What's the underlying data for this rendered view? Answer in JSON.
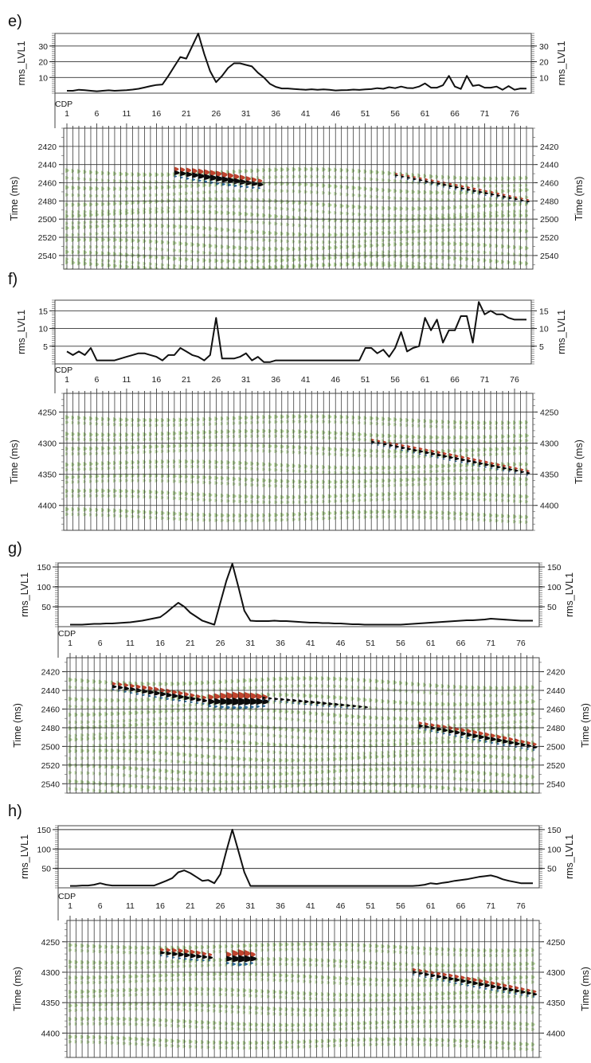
{
  "figure": {
    "x_axis_label": "CDP",
    "cdp_ticks": [
      1,
      6,
      11,
      16,
      21,
      26,
      31,
      36,
      41,
      46,
      51,
      56,
      61,
      66,
      71,
      76
    ],
    "colors": {
      "line": "#111111",
      "trace": "#222222",
      "green": "#a9cf8c",
      "red": "#c0442e",
      "black": "#0b0b0b",
      "blue": "#2f6e9a"
    }
  },
  "chart_data": [
    {
      "type": "line",
      "panel_label": "e)",
      "ylabel": "rms_LVL1",
      "ylim": [
        0,
        38
      ],
      "yticks": [
        10,
        20,
        30
      ],
      "x": [
        1,
        2,
        3,
        4,
        5,
        6,
        7,
        8,
        9,
        10,
        11,
        12,
        13,
        14,
        15,
        16,
        17,
        18,
        19,
        20,
        21,
        22,
        23,
        24,
        25,
        26,
        27,
        28,
        29,
        30,
        31,
        32,
        33,
        34,
        35,
        36,
        37,
        38,
        39,
        40,
        41,
        42,
        43,
        44,
        45,
        46,
        47,
        48,
        49,
        50,
        51,
        52,
        53,
        54,
        55,
        56,
        57,
        58,
        59,
        60,
        61,
        62,
        63,
        64,
        65,
        66,
        67,
        68,
        69,
        70,
        71,
        72,
        73,
        74,
        75,
        76,
        77,
        78
      ],
      "y": [
        1.5,
        1.5,
        2.2,
        1.9,
        1.5,
        1.2,
        1.5,
        1.8,
        1.5,
        1.7,
        1.9,
        2.3,
        2.8,
        3.6,
        4.5,
        5.2,
        5.5,
        11,
        17,
        23,
        22,
        30,
        38,
        25,
        14,
        7,
        11,
        16,
        19,
        19,
        18,
        17,
        13,
        10,
        6,
        4,
        3,
        3,
        2.7,
        2.4,
        2.2,
        2.5,
        2.2,
        2.4,
        2.2,
        1.7,
        1.9,
        2,
        2.3,
        2.1,
        2.4,
        2.6,
        3.2,
        2.8,
        3.8,
        3.2,
        4.2,
        3.3,
        3.2,
        4.2,
        6.2,
        3.5,
        3.5,
        5,
        11,
        4.2,
        2.7,
        11,
        4.6,
        5.2,
        3.5,
        3.5,
        4.2,
        2.2,
        4.5,
        2.2,
        3,
        2.9
      ],
      "seismic": {
        "ylabel": "Time (ms)",
        "yrange": [
          2400,
          2555
        ],
        "yticks": [
          2420,
          2440,
          2460,
          2480,
          2500,
          2520,
          2540
        ],
        "horizons": [
          2446,
          2462,
          2480,
          2494,
          2510,
          2526,
          2540,
          2550
        ],
        "bright": [
          {
            "from": 19,
            "to": 33,
            "t0": 2449,
            "t1": 2462,
            "strength": 1.0,
            "red": true
          },
          {
            "from": 56,
            "to": 79,
            "t0": 2452,
            "t1": 2482,
            "strength": 0.45,
            "red": true
          }
        ]
      }
    },
    {
      "type": "line",
      "panel_label": "f)",
      "ylabel": "rms_LVL1",
      "ylim": [
        0,
        18
      ],
      "yticks": [
        5,
        10,
        15
      ],
      "x": [
        1,
        2,
        3,
        4,
        5,
        6,
        7,
        8,
        9,
        10,
        11,
        12,
        13,
        14,
        15,
        16,
        17,
        18,
        19,
        20,
        21,
        22,
        23,
        24,
        25,
        26,
        27,
        28,
        29,
        30,
        31,
        32,
        33,
        34,
        35,
        36,
        37,
        38,
        39,
        40,
        41,
        42,
        43,
        44,
        45,
        46,
        47,
        48,
        49,
        50,
        51,
        52,
        53,
        54,
        55,
        56,
        57,
        58,
        59,
        60,
        61,
        62,
        63,
        64,
        65,
        66,
        67,
        68,
        69,
        70,
        71,
        72,
        73,
        74,
        75,
        76,
        77,
        78
      ],
      "y": [
        3.5,
        2.5,
        3.5,
        2.5,
        4.5,
        1,
        1,
        1,
        1,
        1.5,
        2,
        2.5,
        3,
        3,
        2.5,
        2,
        1,
        2.5,
        2.5,
        4.5,
        3.5,
        2.5,
        2,
        1,
        2.5,
        13,
        1.5,
        1.5,
        1.5,
        2,
        3,
        1,
        2,
        0.5,
        0.5,
        1,
        1,
        1,
        1,
        1,
        1,
        1,
        1,
        1,
        1,
        1,
        1,
        1,
        1,
        1,
        4.5,
        4.5,
        3,
        4,
        2,
        4.5,
        9,
        3.5,
        4.5,
        5,
        13,
        9.5,
        12.5,
        6,
        9.5,
        9.5,
        13.5,
        13.5,
        6,
        17.5,
        14,
        15,
        14,
        14,
        13,
        12.5,
        12.5,
        12.5
      ],
      "seismic": {
        "ylabel": "Time (ms)",
        "yrange": [
          4220,
          4440
        ],
        "yticks": [
          4250,
          4300,
          4350,
          4400
        ],
        "horizons": [
          4258,
          4282,
          4305,
          4332,
          4355,
          4380,
          4410
        ],
        "bright": [
          {
            "from": 52,
            "to": 79,
            "t0": 4298,
            "t1": 4350,
            "strength": 0.55,
            "red": true
          }
        ]
      }
    },
    {
      "type": "line",
      "panel_label": "g)",
      "ylabel": "rms_LVL1",
      "ylim": [
        0,
        160
      ],
      "yticks": [
        50,
        100,
        150
      ],
      "x": [
        1,
        2,
        3,
        4,
        5,
        6,
        7,
        8,
        9,
        10,
        11,
        12,
        13,
        14,
        15,
        16,
        17,
        18,
        19,
        20,
        21,
        22,
        23,
        24,
        25,
        26,
        27,
        28,
        29,
        30,
        31,
        32,
        33,
        34,
        35,
        36,
        37,
        38,
        39,
        40,
        41,
        42,
        43,
        44,
        45,
        46,
        47,
        48,
        49,
        50,
        51,
        52,
        53,
        54,
        55,
        56,
        57,
        58,
        59,
        60,
        61,
        62,
        63,
        64,
        65,
        66,
        67,
        68,
        69,
        70,
        71,
        72,
        73,
        74,
        75,
        76,
        77,
        78
      ],
      "y": [
        5,
        5,
        5,
        6,
        7,
        7,
        8,
        8,
        9,
        10,
        11,
        13,
        15,
        18,
        21,
        24,
        35,
        48,
        60,
        50,
        35,
        25,
        15,
        10,
        5,
        60,
        115,
        158,
        100,
        40,
        15,
        14,
        14,
        14,
        15,
        14,
        14,
        13,
        12,
        11,
        10,
        10,
        9,
        9,
        8,
        8,
        7,
        6,
        6,
        5,
        5,
        5,
        5,
        5,
        5,
        5,
        6,
        7,
        8,
        9,
        10,
        11,
        12,
        13,
        14,
        15,
        16,
        16,
        17,
        18,
        20,
        19,
        18,
        17,
        16,
        15,
        15,
        15
      ],
      "seismic": {
        "ylabel": "Time (ms)",
        "yrange": [
          2405,
          2550
        ],
        "yticks": [
          2420,
          2440,
          2460,
          2480,
          2500,
          2520,
          2540
        ],
        "horizons": [
          2428,
          2446,
          2462,
          2478,
          2493,
          2508,
          2524,
          2540
        ],
        "bright": [
          {
            "from": 8,
            "to": 24,
            "t0": 2436,
            "t1": 2452,
            "strength": 0.8,
            "red": true
          },
          {
            "from": 24,
            "to": 33,
            "t0": 2452,
            "t1": 2452,
            "strength": 1.25,
            "red": true
          },
          {
            "from": 33,
            "to": 50,
            "t0": 2448,
            "t1": 2458,
            "strength": 0.55,
            "red": false
          },
          {
            "from": 59,
            "to": 79,
            "t0": 2478,
            "t1": 2502,
            "strength": 0.75,
            "red": true
          }
        ]
      }
    },
    {
      "type": "line",
      "panel_label": "h)",
      "ylabel": "rms_LVL1",
      "ylim": [
        0,
        160
      ],
      "yticks": [
        50,
        100,
        150
      ],
      "x": [
        1,
        2,
        3,
        4,
        5,
        6,
        7,
        8,
        9,
        10,
        11,
        12,
        13,
        14,
        15,
        16,
        17,
        18,
        19,
        20,
        21,
        22,
        23,
        24,
        25,
        26,
        27,
        28,
        29,
        30,
        31,
        32,
        33,
        34,
        35,
        36,
        37,
        38,
        39,
        40,
        41,
        42,
        43,
        44,
        45,
        46,
        47,
        48,
        49,
        50,
        51,
        52,
        53,
        54,
        55,
        56,
        57,
        58,
        59,
        60,
        61,
        62,
        63,
        64,
        65,
        66,
        67,
        68,
        69,
        70,
        71,
        72,
        73,
        74,
        75,
        76,
        77,
        78
      ],
      "y": [
        5,
        5,
        6,
        6,
        8,
        12,
        8,
        6,
        6,
        6,
        6,
        6,
        6,
        6,
        6,
        12,
        18,
        25,
        40,
        45,
        38,
        28,
        18,
        20,
        12,
        35,
        95,
        150,
        95,
        40,
        5,
        5,
        5,
        5,
        5,
        5,
        5,
        5,
        5,
        5,
        5,
        5,
        5,
        5,
        5,
        5,
        5,
        5,
        5,
        5,
        5,
        5,
        5,
        5,
        5,
        5,
        5,
        5,
        6,
        8,
        12,
        10,
        13,
        15,
        18,
        20,
        22,
        25,
        28,
        30,
        32,
        28,
        22,
        18,
        15,
        12,
        12,
        12
      ],
      "seismic": {
        "ylabel": "Time (ms)",
        "yrange": [
          4215,
          4440
        ],
        "yticks": [
          4250,
          4300,
          4350,
          4400
        ],
        "horizons": [
          4255,
          4280,
          4305,
          4330,
          4355,
          4380,
          4410
        ],
        "bright": [
          {
            "from": 16,
            "to": 24,
            "t0": 4268,
            "t1": 4276,
            "strength": 0.8,
            "red": true
          },
          {
            "from": 27,
            "to": 31,
            "t0": 4278,
            "t1": 4278,
            "strength": 1.2,
            "red": true
          },
          {
            "from": 58,
            "to": 79,
            "t0": 4300,
            "t1": 4338,
            "strength": 0.7,
            "red": true
          }
        ]
      }
    }
  ]
}
